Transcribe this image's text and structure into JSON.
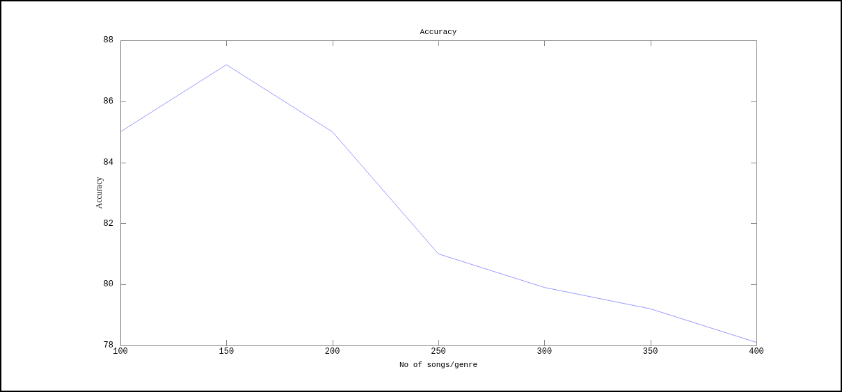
{
  "chart_data": {
    "type": "line",
    "title": "Accuracy",
    "xlabel": "No of songs/genre",
    "ylabel": "Accuracy",
    "x": [
      100,
      150,
      200,
      250,
      300,
      350,
      400
    ],
    "series": [
      {
        "color": "#9999ff",
        "values": [
          85.0,
          87.2,
          85.0,
          81.0,
          79.9,
          79.2,
          78.1
        ]
      }
    ],
    "xlim": [
      100,
      400
    ],
    "xticks": [
      100,
      150,
      200,
      250,
      300,
      350,
      400
    ],
    "ylim": [
      78,
      88
    ],
    "yticks": [
      78,
      80,
      82,
      84,
      86,
      88
    ],
    "grid": false,
    "legend": false,
    "marker": "none",
    "line_style": "solid"
  }
}
